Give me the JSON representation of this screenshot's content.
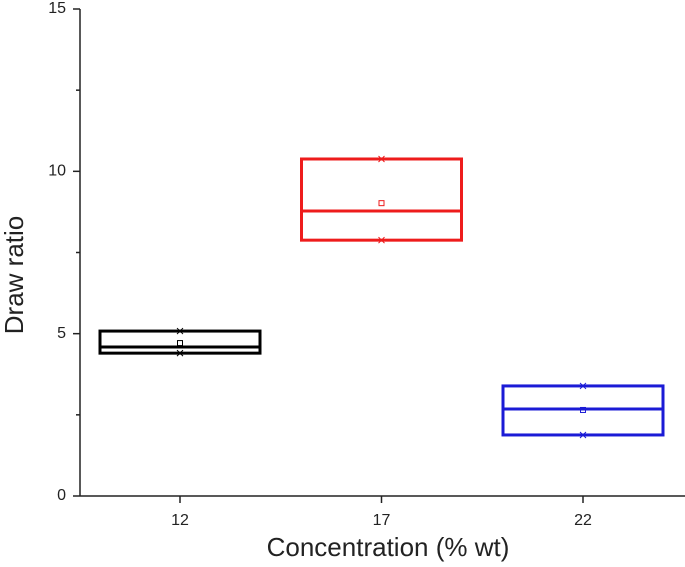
{
  "chart_data": {
    "type": "box",
    "xlabel": "Concentration (% wt)",
    "ylabel": "Draw ratio",
    "categories": [
      "12",
      "17",
      "22"
    ],
    "series": [
      {
        "color": "#000000",
        "q1": 4.4,
        "median": 4.59,
        "q3": 5.08,
        "mean": 4.71,
        "min": 4.4,
        "max": 5.08
      },
      {
        "color": "#ee1c1c",
        "q1": 7.88,
        "median": 8.78,
        "q3": 10.38,
        "mean": 9.02,
        "min": 7.88,
        "max": 10.38
      },
      {
        "color": "#1b1bd6",
        "q1": 1.88,
        "median": 2.68,
        "q3": 3.39,
        "mean": 2.65,
        "min": 1.88,
        "max": 3.39
      }
    ],
    "ylim": [
      0,
      15
    ],
    "yticks": [
      0,
      5,
      10,
      15
    ],
    "yminorticks": [
      2.5,
      7.5,
      12.5
    ]
  }
}
